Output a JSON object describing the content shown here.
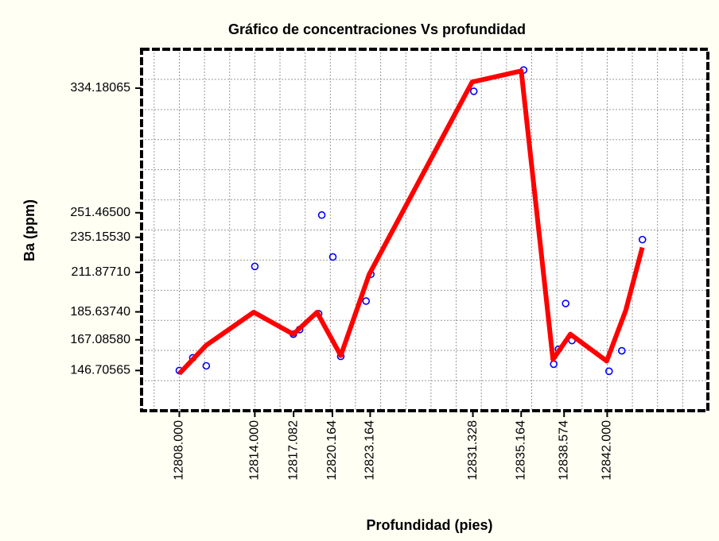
{
  "chart_data": {
    "type": "scatter",
    "title": "Gráfico de concentraciones Vs profundidad",
    "xlabel": "Profundidad (pies)",
    "ylabel": "Ba (ppm)",
    "xlim": [
      12805,
      12850
    ],
    "ylim": [
      120,
      360
    ],
    "xticks": [
      {
        "value": 12808,
        "label": "12808.000"
      },
      {
        "value": 12814,
        "label": "12814.000"
      },
      {
        "value": 12817.082,
        "label": "12817.082"
      },
      {
        "value": 12820.164,
        "label": "12820.164"
      },
      {
        "value": 12823.164,
        "label": "12823.164"
      },
      {
        "value": 12831.328,
        "label": "12831.328"
      },
      {
        "value": 12835.164,
        "label": "12835.164"
      },
      {
        "value": 12838.574,
        "label": "12838.574"
      },
      {
        "value": 12842,
        "label": "12842.000"
      }
    ],
    "yticks": [
      {
        "value": 146.70565,
        "label": "146.70565"
      },
      {
        "value": 167.0858,
        "label": "167.08580"
      },
      {
        "value": 185.6374,
        "label": "185.63740"
      },
      {
        "value": 211.8771,
        "label": "211.87710"
      },
      {
        "value": 235.1553,
        "label": "235.15530"
      },
      {
        "value": 251.465,
        "label": "251.46500"
      },
      {
        "value": 334.18065,
        "label": "334.18065"
      }
    ],
    "xgrid": [
      12806,
      12808,
      12810,
      12812,
      12814,
      12816,
      12818,
      12820,
      12822,
      12824,
      12826,
      12828,
      12830,
      12832,
      12834,
      12836,
      12838,
      12840,
      12842,
      12844,
      12846,
      12848
    ],
    "ygrid": [
      140,
      160,
      180,
      200,
      220,
      240,
      260,
      280,
      300,
      320,
      340
    ],
    "grid": true,
    "series": [
      {
        "color": "#0000ff",
        "x": [
          12808.0,
          12809.07,
          12810.14,
          12814.0,
          12817.06,
          12817.56,
          12819.07,
          12819.32,
          12820.2,
          12820.83,
          12822.84,
          12823.22,
          12831.4,
          12835.36,
          12837.75,
          12838.13,
          12838.7,
          12839.2,
          12842.15,
          12843.16,
          12844.8
        ],
        "values": [
          146.7,
          155.1,
          149.8,
          215.8,
          170.8,
          173.9,
          184.4,
          249.9,
          222.1,
          156.1,
          192.8,
          210.6,
          332.1,
          346.2,
          150.9,
          160.8,
          191.2,
          166.6,
          146.2,
          159.8,
          233.6
        ]
      },
      {
        "color": "#ff0000",
        "kind": "line",
        "x": [
          12808.0,
          12810.14,
          12813.91,
          12817.06,
          12818.94,
          12820.83,
          12823.09,
          12831.27,
          12835.17,
          12837.69,
          12839.07,
          12841.96,
          12843.47,
          12844.79
        ],
        "values": [
          144.6,
          163.5,
          185.4,
          170.8,
          185.4,
          156.6,
          210.6,
          338.3,
          345.6,
          154.0,
          170.8,
          153.0,
          186.5,
          228.4
        ]
      }
    ]
  }
}
